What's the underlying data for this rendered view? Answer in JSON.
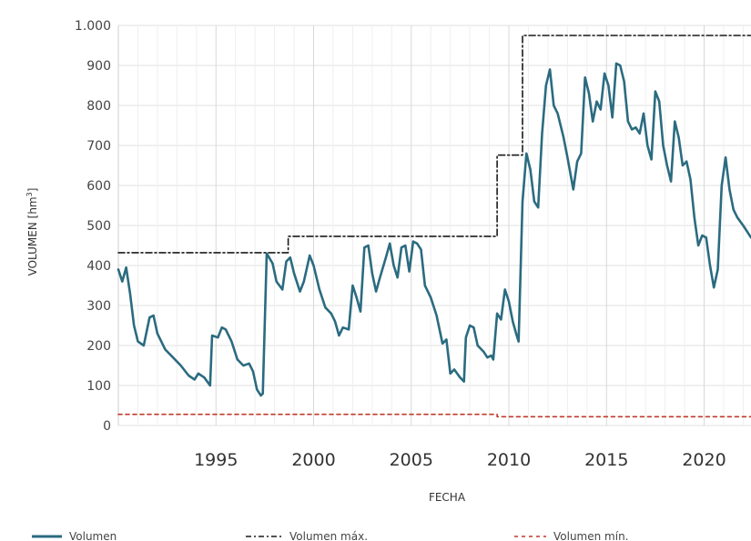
{
  "chart_data": {
    "type": "line",
    "xlabel": "FECHA",
    "ylabel": "VOLUMEN [hm",
    "ylabel_sup": "3",
    "ylabel_close": "]",
    "xlim": [
      1990.0,
      2022.4
    ],
    "ylim": [
      0,
      1000
    ],
    "yticks": [
      0,
      100,
      200,
      300,
      400,
      500,
      600,
      700,
      800,
      900,
      1000
    ],
    "ytick_labels": [
      "0",
      "100",
      "200",
      "300",
      "400",
      "500",
      "600",
      "700",
      "800",
      "900",
      "1.000"
    ],
    "xticks": [
      1995,
      2000,
      2005,
      2010,
      2015,
      2020
    ],
    "xtick_labels": [
      "1995",
      "2000",
      "2005",
      "2010",
      "2015",
      "2020"
    ],
    "grid": true,
    "legend_position": "bottom",
    "series": [
      {
        "name": "Volumen",
        "color": "#2b6b80",
        "style": "solid",
        "points": [
          [
            1990.0,
            390
          ],
          [
            1990.2,
            360
          ],
          [
            1990.4,
            395
          ],
          [
            1990.6,
            330
          ],
          [
            1990.8,
            250
          ],
          [
            1991.0,
            210
          ],
          [
            1991.3,
            200
          ],
          [
            1991.6,
            270
          ],
          [
            1991.8,
            275
          ],
          [
            1992.0,
            230
          ],
          [
            1992.4,
            190
          ],
          [
            1992.8,
            170
          ],
          [
            1993.2,
            150
          ],
          [
            1993.6,
            125
          ],
          [
            1993.9,
            115
          ],
          [
            1994.1,
            130
          ],
          [
            1994.4,
            120
          ],
          [
            1994.7,
            100
          ],
          [
            1994.8,
            225
          ],
          [
            1995.1,
            220
          ],
          [
            1995.3,
            245
          ],
          [
            1995.5,
            240
          ],
          [
            1995.8,
            210
          ],
          [
            1996.1,
            165
          ],
          [
            1996.4,
            150
          ],
          [
            1996.7,
            155
          ],
          [
            1996.9,
            135
          ],
          [
            1997.1,
            90
          ],
          [
            1997.3,
            75
          ],
          [
            1997.4,
            80
          ],
          [
            1997.6,
            430
          ],
          [
            1997.9,
            405
          ],
          [
            1998.1,
            360
          ],
          [
            1998.4,
            340
          ],
          [
            1998.6,
            410
          ],
          [
            1998.8,
            420
          ],
          [
            1999.0,
            380
          ],
          [
            1999.3,
            335
          ],
          [
            1999.5,
            360
          ],
          [
            1999.8,
            425
          ],
          [
            2000.0,
            400
          ],
          [
            2000.3,
            340
          ],
          [
            2000.6,
            295
          ],
          [
            2000.9,
            280
          ],
          [
            2001.1,
            260
          ],
          [
            2001.3,
            225
          ],
          [
            2001.5,
            245
          ],
          [
            2001.8,
            240
          ],
          [
            2002.0,
            350
          ],
          [
            2002.2,
            320
          ],
          [
            2002.4,
            285
          ],
          [
            2002.6,
            445
          ],
          [
            2002.8,
            450
          ],
          [
            2003.0,
            380
          ],
          [
            2003.2,
            335
          ],
          [
            2003.4,
            370
          ],
          [
            2003.7,
            420
          ],
          [
            2003.9,
            455
          ],
          [
            2004.1,
            400
          ],
          [
            2004.3,
            370
          ],
          [
            2004.5,
            445
          ],
          [
            2004.7,
            450
          ],
          [
            2004.9,
            385
          ],
          [
            2005.1,
            460
          ],
          [
            2005.3,
            455
          ],
          [
            2005.5,
            440
          ],
          [
            2005.7,
            350
          ],
          [
            2006.0,
            320
          ],
          [
            2006.3,
            275
          ],
          [
            2006.6,
            205
          ],
          [
            2006.8,
            215
          ],
          [
            2007.0,
            130
          ],
          [
            2007.2,
            140
          ],
          [
            2007.5,
            120
          ],
          [
            2007.7,
            110
          ],
          [
            2007.8,
            220
          ],
          [
            2008.0,
            250
          ],
          [
            2008.2,
            245
          ],
          [
            2008.4,
            200
          ],
          [
            2008.7,
            185
          ],
          [
            2008.9,
            170
          ],
          [
            2009.1,
            175
          ],
          [
            2009.2,
            165
          ],
          [
            2009.4,
            280
          ],
          [
            2009.6,
            265
          ],
          [
            2009.8,
            340
          ],
          [
            2010.0,
            310
          ],
          [
            2010.2,
            260
          ],
          [
            2010.4,
            225
          ],
          [
            2010.5,
            210
          ],
          [
            2010.7,
            560
          ],
          [
            2010.9,
            680
          ],
          [
            2011.1,
            640
          ],
          [
            2011.3,
            560
          ],
          [
            2011.5,
            545
          ],
          [
            2011.7,
            730
          ],
          [
            2011.9,
            850
          ],
          [
            2012.1,
            890
          ],
          [
            2012.3,
            800
          ],
          [
            2012.5,
            780
          ],
          [
            2012.8,
            720
          ],
          [
            2013.0,
            670
          ],
          [
            2013.3,
            590
          ],
          [
            2013.5,
            660
          ],
          [
            2013.7,
            680
          ],
          [
            2013.9,
            870
          ],
          [
            2014.1,
            830
          ],
          [
            2014.3,
            760
          ],
          [
            2014.5,
            810
          ],
          [
            2014.7,
            790
          ],
          [
            2014.9,
            880
          ],
          [
            2015.1,
            850
          ],
          [
            2015.3,
            770
          ],
          [
            2015.5,
            905
          ],
          [
            2015.7,
            900
          ],
          [
            2015.9,
            860
          ],
          [
            2016.1,
            760
          ],
          [
            2016.3,
            740
          ],
          [
            2016.5,
            745
          ],
          [
            2016.7,
            730
          ],
          [
            2016.9,
            780
          ],
          [
            2017.1,
            700
          ],
          [
            2017.3,
            665
          ],
          [
            2017.5,
            835
          ],
          [
            2017.7,
            810
          ],
          [
            2017.9,
            700
          ],
          [
            2018.1,
            650
          ],
          [
            2018.3,
            610
          ],
          [
            2018.5,
            760
          ],
          [
            2018.7,
            720
          ],
          [
            2018.9,
            650
          ],
          [
            2019.1,
            660
          ],
          [
            2019.3,
            615
          ],
          [
            2019.5,
            520
          ],
          [
            2019.7,
            450
          ],
          [
            2019.9,
            475
          ],
          [
            2020.1,
            470
          ],
          [
            2020.3,
            400
          ],
          [
            2020.5,
            345
          ],
          [
            2020.7,
            390
          ],
          [
            2020.9,
            600
          ],
          [
            2021.1,
            670
          ],
          [
            2021.3,
            590
          ],
          [
            2021.5,
            540
          ],
          [
            2021.7,
            520
          ],
          [
            2022.0,
            500
          ],
          [
            2022.4,
            470
          ]
        ]
      },
      {
        "name": "Volumen máx.",
        "color": "#1a1a1a",
        "style": "dashdot",
        "points": [
          [
            1990.0,
            432
          ],
          [
            1998.7,
            432
          ],
          [
            1998.7,
            473
          ],
          [
            2009.4,
            473
          ],
          [
            2009.4,
            676
          ],
          [
            2010.7,
            676
          ],
          [
            2010.7,
            975
          ],
          [
            2022.4,
            975
          ]
        ]
      },
      {
        "name": "Volumen mín.",
        "color": "#c0392b",
        "style": "dashed",
        "points": [
          [
            1990.0,
            28
          ],
          [
            2009.4,
            28
          ],
          [
            2009.4,
            22
          ],
          [
            2022.4,
            22
          ]
        ]
      }
    ]
  }
}
